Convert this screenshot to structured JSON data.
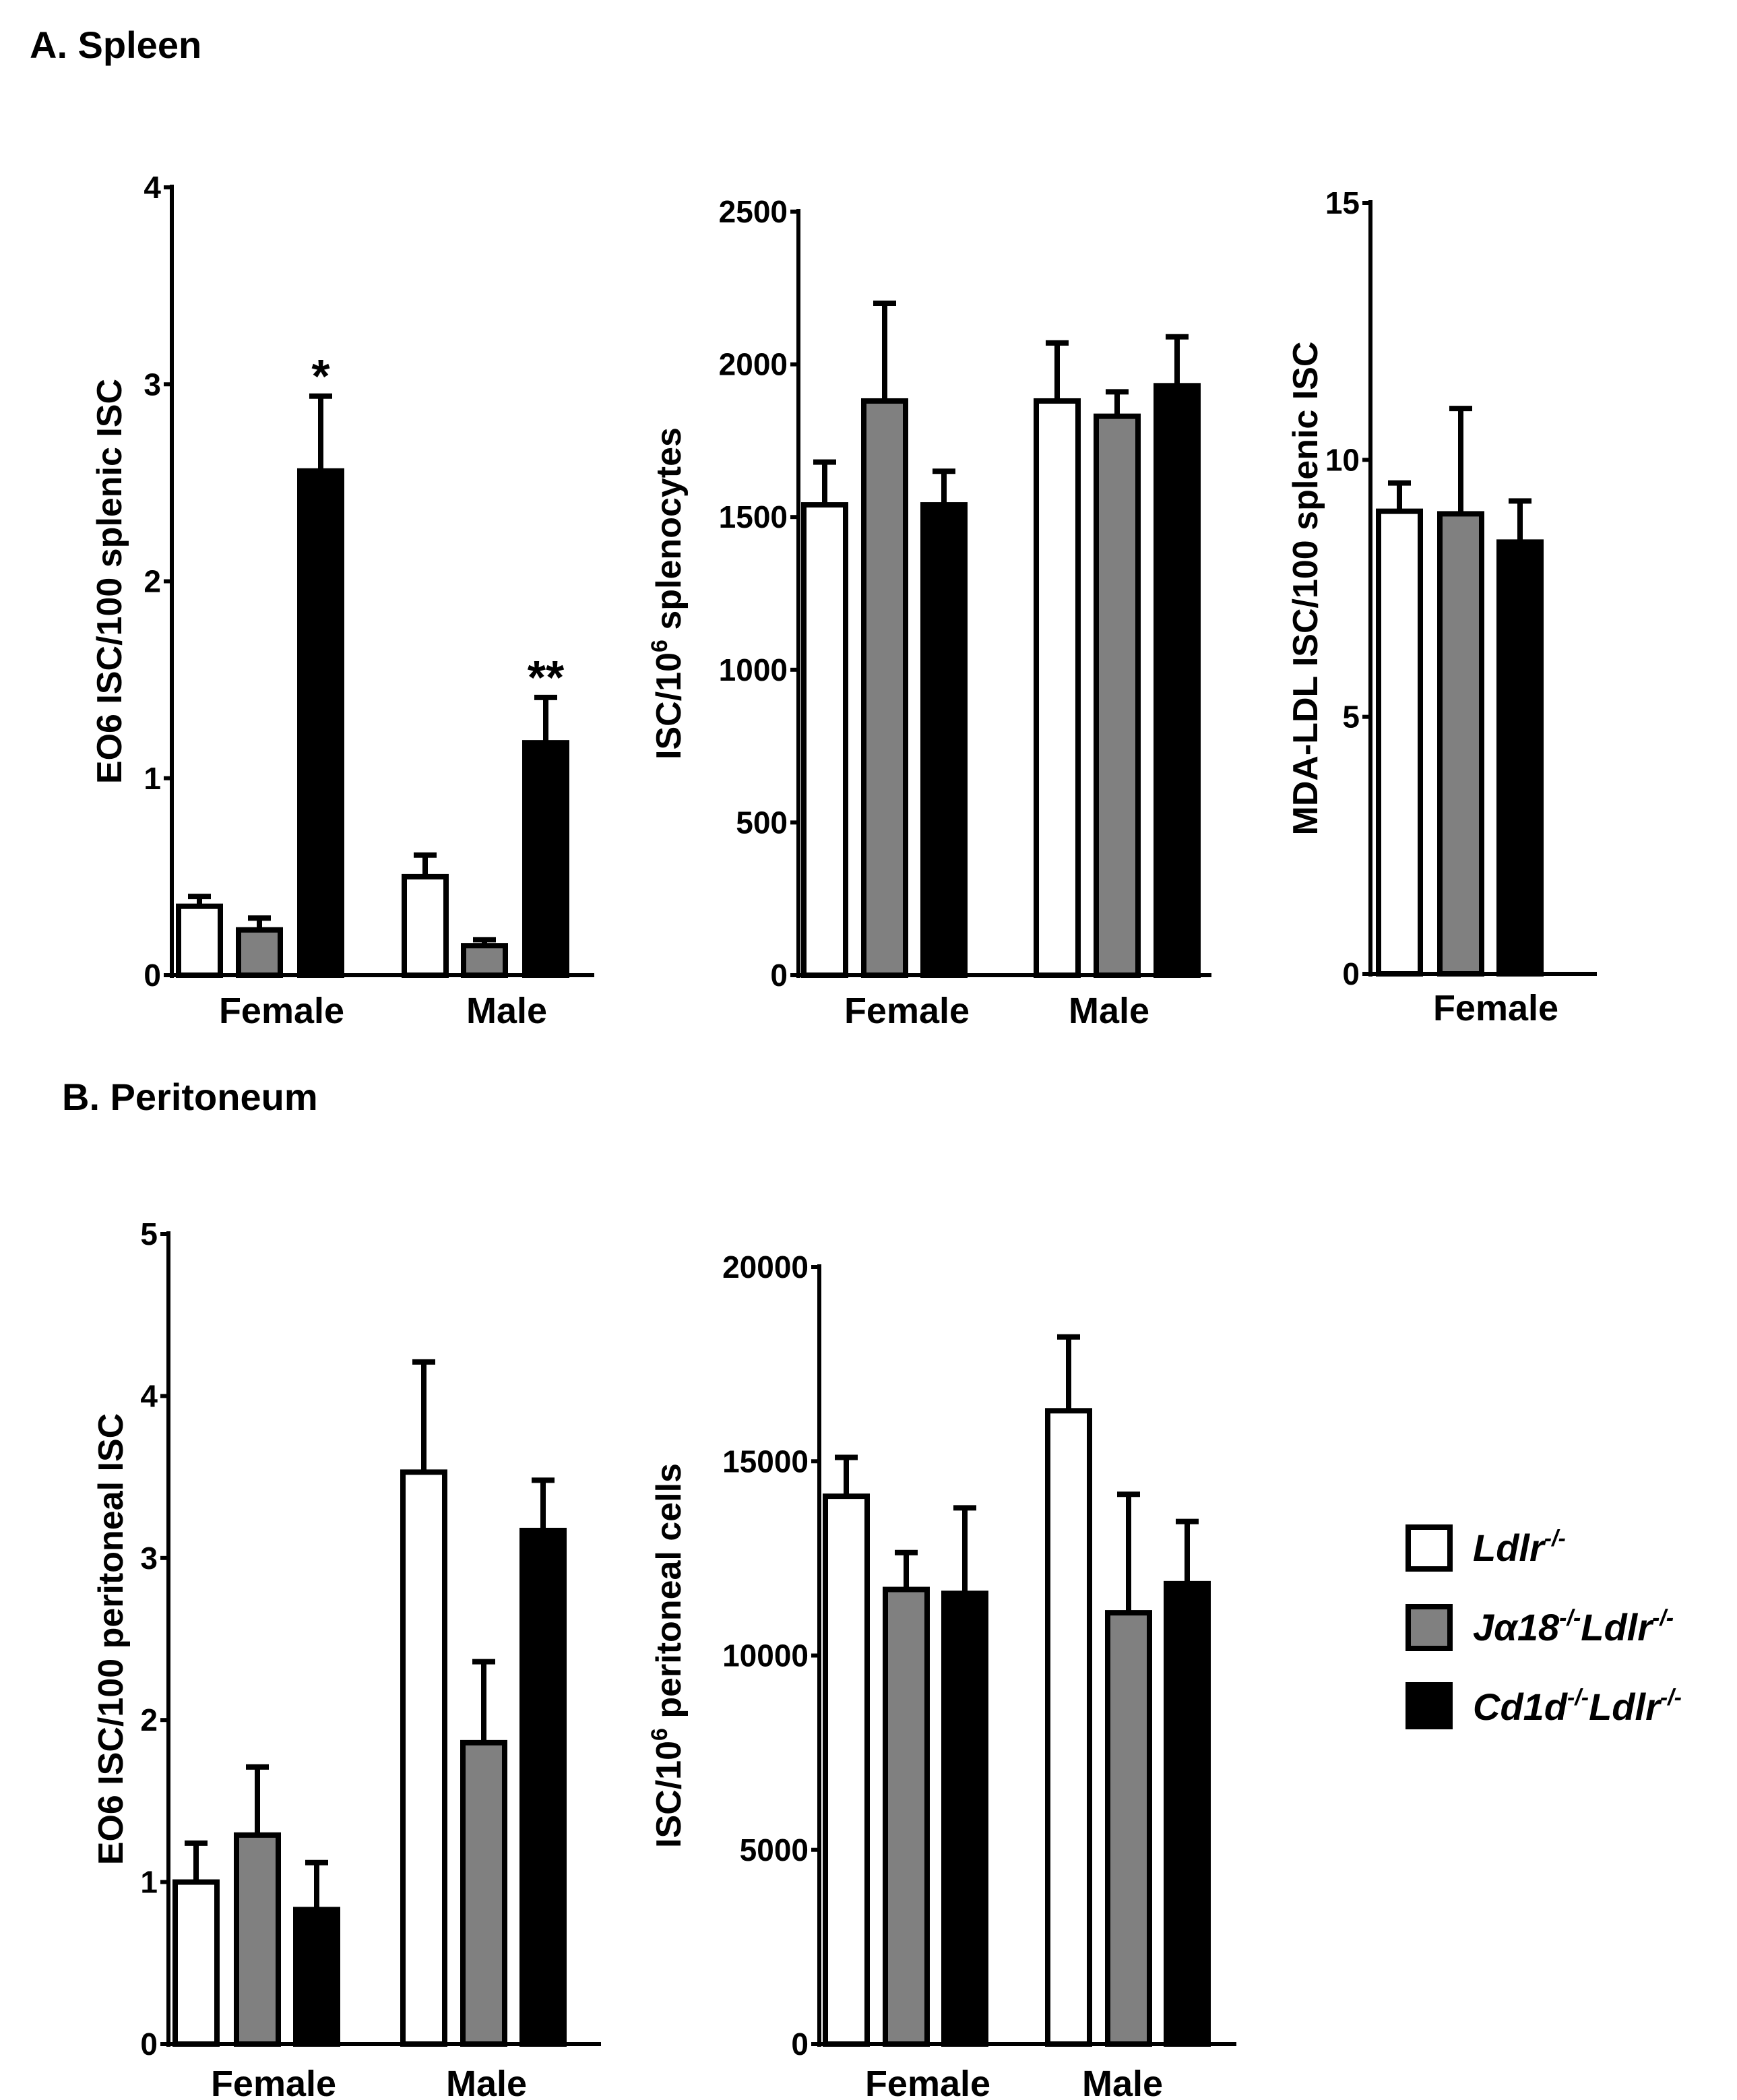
{
  "sections": {
    "a": "A.  Spleen",
    "b": "B.  Peritoneum"
  },
  "colors": {
    "Ldlr": "#ffffff",
    "Ja18": "#808080",
    "Cd1d": "#000000",
    "axis": "#000000"
  },
  "legend": {
    "items": [
      {
        "key": "Ldlr",
        "base": "Ldlr",
        "sup1": "-/-",
        "mid": "",
        "sup2": ""
      },
      {
        "key": "Ja18",
        "base": "Jα18",
        "sup1": "-/-",
        "mid": "Ldlr",
        "sup2": "-/-"
      },
      {
        "key": "Cd1d",
        "base": "Cd1d",
        "sup1": "-/-",
        "mid": "Ldlr",
        "sup2": "-/-"
      }
    ]
  },
  "chart_data": [
    {
      "id": "spleen-eo6",
      "type": "bar",
      "ylabel": "EO6 ISC/100 splenic ISC",
      "ylim": [
        0,
        4
      ],
      "yticks": [
        "0",
        "1",
        "2",
        "3",
        "4"
      ],
      "categories": [
        "Female",
        "Male"
      ],
      "series": [
        {
          "name": "Ldlr-/-",
          "key": "Ldlr",
          "values": [
            0.35,
            0.5
          ],
          "errors": [
            0.05,
            0.11
          ]
        },
        {
          "name": "Jα18-/-Ldlr-/-",
          "key": "Ja18",
          "values": [
            0.23,
            0.15
          ],
          "errors": [
            0.06,
            0.03
          ]
        },
        {
          "name": "Cd1d-/-Ldlr-/-",
          "key": "Cd1d",
          "values": [
            2.56,
            1.18
          ],
          "errors": [
            0.38,
            0.23
          ]
        }
      ],
      "annotations": [
        {
          "text": "*",
          "category": 0,
          "series": 2
        },
        {
          "text": "**",
          "category": 1,
          "series": 2
        }
      ]
    },
    {
      "id": "spleen-isc",
      "type": "bar",
      "ylabel": "ISC/10",
      "ylabel_sup": "6",
      "ylabel_rest": " splenocytes",
      "ylim": [
        0,
        2500
      ],
      "yticks": [
        "0",
        "500",
        "1000",
        "1500",
        "2000",
        "2500"
      ],
      "categories": [
        "Female",
        "Male"
      ],
      "series": [
        {
          "name": "Ldlr-/-",
          "key": "Ldlr",
          "values": [
            1540,
            1880
          ],
          "errors": [
            140,
            190
          ]
        },
        {
          "name": "Jα18-/-Ldlr-/-",
          "key": "Ja18",
          "values": [
            1880,
            1830
          ],
          "errors": [
            320,
            80
          ]
        },
        {
          "name": "Cd1d-/-Ldlr-/-",
          "key": "Cd1d",
          "values": [
            1540,
            1930
          ],
          "errors": [
            110,
            160
          ]
        }
      ]
    },
    {
      "id": "spleen-mda",
      "type": "bar",
      "ylabel": "MDA-LDL ISC/100 splenic ISC",
      "ylim": [
        0,
        15
      ],
      "yticks": [
        "0",
        "5",
        "10",
        "15"
      ],
      "categories": [
        "Female"
      ],
      "series": [
        {
          "name": "Ldlr-/-",
          "key": "Ldlr",
          "values": [
            9.0
          ],
          "errors": [
            0.55
          ]
        },
        {
          "name": "Jα18-/-Ldlr-/-",
          "key": "Ja18",
          "values": [
            8.95
          ],
          "errors": [
            2.05
          ]
        },
        {
          "name": "Cd1d-/-Ldlr-/-",
          "key": "Cd1d",
          "values": [
            8.4
          ],
          "errors": [
            0.8
          ]
        }
      ]
    },
    {
      "id": "peritoneum-eo6",
      "type": "bar",
      "ylabel": "EO6 ISC/100 peritoneal ISC",
      "ylim": [
        0,
        5
      ],
      "yticks": [
        "0",
        "1",
        "2",
        "3",
        "4",
        "5"
      ],
      "categories": [
        "Female",
        "Male"
      ],
      "series": [
        {
          "name": "Ldlr-/-",
          "key": "Ldlr",
          "values": [
            1.0,
            3.53
          ],
          "errors": [
            0.24,
            0.68
          ]
        },
        {
          "name": "Jα18-/-Ldlr-/-",
          "key": "Ja18",
          "values": [
            1.29,
            1.86
          ],
          "errors": [
            0.42,
            0.5
          ]
        },
        {
          "name": "Cd1d-/-Ldlr-/-",
          "key": "Cd1d",
          "values": [
            0.83,
            3.17
          ],
          "errors": [
            0.29,
            0.31
          ]
        }
      ]
    },
    {
      "id": "peritoneum-isc",
      "type": "bar",
      "ylabel": "ISC/10",
      "ylabel_sup": "6",
      "ylabel_rest": " peritoneal cells",
      "ylim": [
        0,
        20000
      ],
      "yticks": [
        "0",
        "5000",
        "10000",
        "15000",
        "20000"
      ],
      "categories": [
        "Female",
        "Male"
      ],
      "series": [
        {
          "name": "Ldlr-/-",
          "key": "Ldlr",
          "values": [
            14100,
            16300
          ],
          "errors": [
            1000,
            1900
          ]
        },
        {
          "name": "Jα18-/-Ldlr-/-",
          "key": "Ja18",
          "values": [
            11700,
            11100
          ],
          "errors": [
            950,
            3050
          ]
        },
        {
          "name": "Cd1d-/-Ldlr-/-",
          "key": "Cd1d",
          "values": [
            11600,
            11850
          ],
          "errors": [
            2200,
            1600
          ]
        }
      ]
    }
  ]
}
